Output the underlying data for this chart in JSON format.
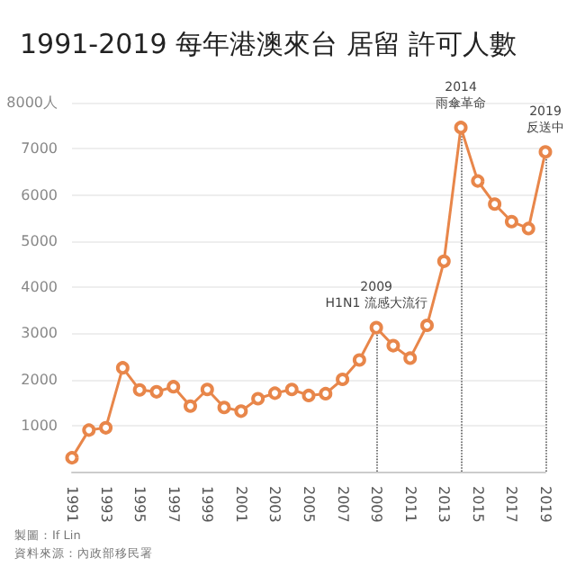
{
  "chart_data": {
    "type": "line",
    "title": "1991-2019 每年港澳來台 居留 許可人數",
    "x": [
      1991,
      1992,
      1993,
      1994,
      1995,
      1996,
      1997,
      1998,
      1999,
      2000,
      2001,
      2002,
      2003,
      2004,
      2005,
      2006,
      2007,
      2008,
      2009,
      2010,
      2011,
      2012,
      2013,
      2014,
      2015,
      2016,
      2017,
      2018,
      2019
    ],
    "xlim": [
      1991,
      2019
    ],
    "xticks": [
      1991,
      1993,
      1995,
      1997,
      1999,
      2001,
      2003,
      2005,
      2007,
      2009,
      2011,
      2013,
      2015,
      2017,
      2019
    ],
    "series": [
      {
        "color": "#e8864a",
        "values": [
          300,
          900,
          950,
          2250,
          1770,
          1730,
          1840,
          1420,
          1780,
          1390,
          1310,
          1580,
          1700,
          1780,
          1650,
          1690,
          2000,
          2420,
          3120,
          2730,
          2460,
          3170,
          4560,
          7460,
          6300,
          5800,
          5420,
          5270,
          6930
        ]
      }
    ],
    "ylim": [
      0,
      8000
    ],
    "yticks": [
      1000,
      2000,
      3000,
      4000,
      5000,
      6000,
      7000,
      {
        "value": 8000,
        "label": "8000人"
      }
    ],
    "grid": "y",
    "marker": "circle",
    "line_style": "solid",
    "ref_lines": [
      {
        "axis": "x",
        "value": 2009,
        "label": "2009\nH1N1 流感大流行",
        "line_style": "dotted",
        "color": "#555555"
      },
      {
        "axis": "x",
        "value": 2014,
        "label": "2014\n雨傘革命",
        "line_style": "dotted",
        "color": "#555555"
      },
      {
        "axis": "x",
        "value": 2019,
        "label": "2019\n反送中",
        "line_style": "dotted",
        "color": "#555555"
      }
    ],
    "annotations": [
      "製圖：If Lin",
      "資料來源：內政部移民署"
    ]
  }
}
